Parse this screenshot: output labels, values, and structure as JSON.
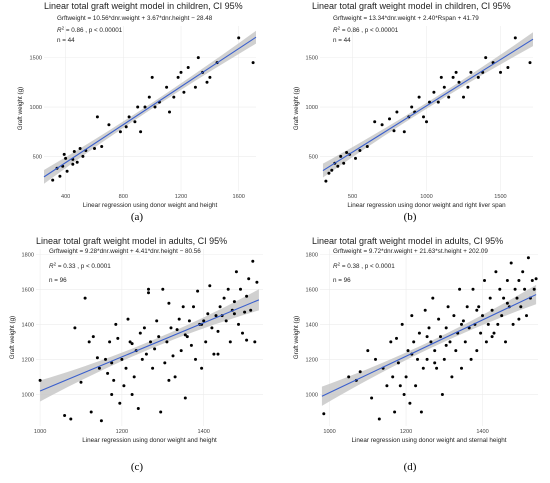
{
  "colors": {
    "line": "#3a5fcd",
    "band": "#c8c8c8",
    "point": "#000000",
    "grid": "#ececec"
  },
  "chart_data": [
    {
      "type": "scatter",
      "caption": "(a)",
      "title": "Linear total graft weight model in children, CI 95%",
      "equation": "Grftweight = 10.56*dnr.weight + 3.67*dnr.height − 28.48",
      "r2_text": "R",
      "r2_rest": " = 0.86 , p < 0.00001",
      "n_text": "n = 44",
      "xlabel": "Linear regression using donor weight and height",
      "ylabel": "Graft weight (g)",
      "xlim": [
        250,
        1720
      ],
      "ylim": [
        150,
        1820
      ],
      "xticks": [
        400,
        800,
        1200,
        1600
      ],
      "yticks": [
        500,
        1000,
        1500
      ],
      "fit": [
        250,
        1720
      ],
      "band_half": [
        70,
        30,
        65
      ],
      "x": [
        310,
        340,
        360,
        380,
        390,
        400,
        410,
        450,
        450,
        460,
        480,
        500,
        520,
        540,
        600,
        620,
        650,
        700,
        780,
        820,
        840,
        880,
        900,
        920,
        950,
        980,
        1000,
        1020,
        1050,
        1100,
        1120,
        1150,
        1180,
        1200,
        1220,
        1250,
        1300,
        1320,
        1350,
        1380,
        1400,
        1450,
        1600,
        1700
      ],
      "y": [
        260,
        380,
        300,
        400,
        520,
        480,
        350,
        470,
        420,
        550,
        440,
        580,
        500,
        560,
        580,
        900,
        600,
        820,
        750,
        800,
        900,
        850,
        1000,
        750,
        1000,
        1100,
        1300,
        1000,
        1050,
        1200,
        950,
        1100,
        1300,
        1350,
        1150,
        1400,
        1200,
        1500,
        1350,
        1250,
        1300,
        1450,
        1700,
        1450
      ]
    },
    {
      "type": "scatter",
      "caption": "(b)",
      "title": "Linear total graft weight model in children, CI 95%",
      "equation": "Grftweight = 13.34*dnr.weight + 2.40*Rspan + 41.79",
      "r2_text": "R",
      "r2_rest": " = 0.86 , p < 0.00001",
      "n_text": "n = 44",
      "xlabel": "Linear regression using donor weight and right liver span",
      "ylabel": "Graft weight (g)",
      "xlim": [
        280,
        1720
      ],
      "ylim": [
        150,
        1820
      ],
      "xticks": [
        500,
        1000,
        1500
      ],
      "yticks": [
        500,
        1000,
        1500
      ],
      "fit": [
        300,
        1720
      ],
      "band_half": [
        70,
        30,
        70
      ],
      "x": [
        320,
        340,
        360,
        380,
        400,
        420,
        440,
        460,
        480,
        520,
        550,
        600,
        650,
        700,
        750,
        780,
        800,
        850,
        880,
        900,
        920,
        950,
        980,
        1000,
        1020,
        1050,
        1080,
        1100,
        1120,
        1150,
        1180,
        1200,
        1220,
        1250,
        1280,
        1300,
        1350,
        1380,
        1400,
        1450,
        1500,
        1550,
        1600,
        1700
      ],
      "y": [
        250,
        330,
        360,
        430,
        400,
        500,
        430,
        540,
        520,
        480,
        560,
        600,
        850,
        820,
        880,
        760,
        950,
        750,
        900,
        1000,
        950,
        1100,
        900,
        850,
        1050,
        1150,
        1050,
        1300,
        1200,
        1100,
        1300,
        1350,
        1250,
        1100,
        1200,
        1350,
        1300,
        1350,
        1500,
        1450,
        1350,
        1400,
        1700,
        1450
      ]
    },
    {
      "type": "scatter",
      "caption": "(c)",
      "title": "Linear total graft weight model in adults, CI 95%",
      "equation": "Grftweight = 9.28*dnr.weight + 4.41*dnr.height − 80.56",
      "r2_text": "R",
      "r2_rest": " = 0.33 , p < 0.0001",
      "n_text": "n = 96",
      "xlabel": "Linear regression using donor weight and height",
      "ylabel": "Graft weight (g)",
      "xlim": [
        990,
        1545
      ],
      "ylim": [
        820,
        1830
      ],
      "xticks": [
        1000,
        1200,
        1400
      ],
      "yticks": [
        1000,
        1200,
        1400,
        1600,
        1800
      ],
      "fit": [
        1000,
        1535
      ],
      "line_y": [
        1020,
        1540
      ],
      "band_half": [
        60,
        22,
        60
      ],
      "x": [
        1000,
        1060,
        1075,
        1085,
        1100,
        1110,
        1120,
        1125,
        1130,
        1140,
        1145,
        1150,
        1160,
        1165,
        1170,
        1175,
        1180,
        1185,
        1190,
        1195,
        1200,
        1205,
        1210,
        1215,
        1220,
        1225,
        1230,
        1235,
        1240,
        1245,
        1250,
        1255,
        1260,
        1265,
        1270,
        1275,
        1280,
        1285,
        1290,
        1295,
        1300,
        1305,
        1310,
        1315,
        1320,
        1325,
        1330,
        1335,
        1340,
        1345,
        1350,
        1355,
        1360,
        1365,
        1370,
        1375,
        1380,
        1385,
        1390,
        1395,
        1400,
        1405,
        1410,
        1415,
        1420,
        1425,
        1430,
        1435,
        1440,
        1445,
        1450,
        1455,
        1460,
        1465,
        1470,
        1475,
        1480,
        1485,
        1490,
        1495,
        1500,
        1505,
        1510,
        1515,
        1520,
        1525,
        1530,
        1175,
        1225,
        1265,
        1315,
        1355,
        1395,
        1435,
        1475,
        1505
      ],
      "y": [
        1080,
        880,
        860,
        1380,
        1070,
        1550,
        1300,
        900,
        1330,
        1210,
        1150,
        850,
        1200,
        1120,
        1300,
        1000,
        1080,
        1400,
        1320,
        950,
        1200,
        1050,
        1150,
        1430,
        1300,
        1000,
        1100,
        1250,
        920,
        1350,
        1200,
        1380,
        1230,
        1600,
        1300,
        1150,
        1260,
        1420,
        1330,
        900,
        1600,
        1180,
        1300,
        1520,
        1380,
        1220,
        1100,
        1370,
        1430,
        1250,
        1500,
        980,
        1330,
        1420,
        1280,
        1500,
        1200,
        1590,
        1400,
        1150,
        1420,
        1300,
        1460,
        1620,
        1380,
        1230,
        1450,
        1360,
        1500,
        1450,
        1550,
        1420,
        1600,
        1300,
        1480,
        1530,
        1700,
        1400,
        1600,
        1350,
        1470,
        1560,
        1660,
        1480,
        1760,
        1300,
        1640,
        1180,
        1290,
        1580,
        1080,
        1340,
        1400,
        1230,
        1460,
        1310
      ]
    },
    {
      "type": "scatter",
      "caption": "(d)",
      "title": "Linear total graft weight model in adults, CI 95%",
      "equation": "Grftweight = 9.72*dnr.weight + 21.63*st.height + 202.09",
      "r2_text": "R",
      "r2_rest": " = 0.38 , p < 0.0001",
      "n_text": "n = 96",
      "xlabel": "Linear regression using donor weight and sternal height",
      "ylabel": "Graft weight (g)",
      "xlim": [
        975,
        1545
      ],
      "ylim": [
        820,
        1830
      ],
      "xticks": [
        1000,
        1200,
        1400
      ],
      "yticks": [
        1000,
        1200,
        1400,
        1600,
        1800
      ],
      "fit": [
        980,
        1540
      ],
      "line_y": [
        990,
        1570
      ],
      "band_half": [
        55,
        20,
        55
      ],
      "x": [
        985,
        1050,
        1070,
        1080,
        1100,
        1110,
        1120,
        1130,
        1140,
        1150,
        1160,
        1170,
        1175,
        1180,
        1190,
        1195,
        1200,
        1205,
        1210,
        1215,
        1220,
        1225,
        1230,
        1235,
        1240,
        1245,
        1250,
        1255,
        1260,
        1265,
        1270,
        1275,
        1280,
        1285,
        1290,
        1295,
        1300,
        1305,
        1310,
        1315,
        1320,
        1325,
        1330,
        1335,
        1340,
        1345,
        1350,
        1355,
        1360,
        1365,
        1370,
        1375,
        1380,
        1385,
        1390,
        1395,
        1400,
        1405,
        1410,
        1415,
        1420,
        1425,
        1430,
        1435,
        1440,
        1445,
        1450,
        1455,
        1460,
        1465,
        1470,
        1475,
        1480,
        1485,
        1490,
        1495,
        1500,
        1505,
        1510,
        1515,
        1520,
        1525,
        1530,
        1535,
        1540,
        1165,
        1215,
        1255,
        1305,
        1345,
        1385,
        1425,
        1465,
        1495,
        1185,
        1275
      ],
      "y": [
        890,
        1100,
        1080,
        1130,
        1250,
        980,
        1200,
        860,
        1150,
        1050,
        1300,
        900,
        1320,
        1180,
        1400,
        1000,
        1100,
        1250,
        950,
        1450,
        1300,
        1050,
        1200,
        1350,
        900,
        1150,
        1480,
        1200,
        1380,
        1300,
        1550,
        1250,
        1150,
        1430,
        1330,
        1000,
        1200,
        1380,
        1500,
        1300,
        1100,
        1450,
        1250,
        1350,
        1600,
        1150,
        1420,
        1300,
        1500,
        1380,
        1200,
        1600,
        1400,
        1250,
        1500,
        1350,
        1450,
        1650,
        1300,
        1400,
        1550,
        1480,
        1350,
        1700,
        1400,
        1600,
        1450,
        1550,
        1300,
        1650,
        1500,
        1750,
        1400,
        1600,
        1550,
        1650,
        1500,
        1700,
        1600,
        1450,
        1780,
        1550,
        1650,
        1600,
        1660,
        1100,
        1230,
        1330,
        1280,
        1400,
        1480,
        1330,
        1520,
        1430,
        1050,
        1180
      ]
    }
  ]
}
